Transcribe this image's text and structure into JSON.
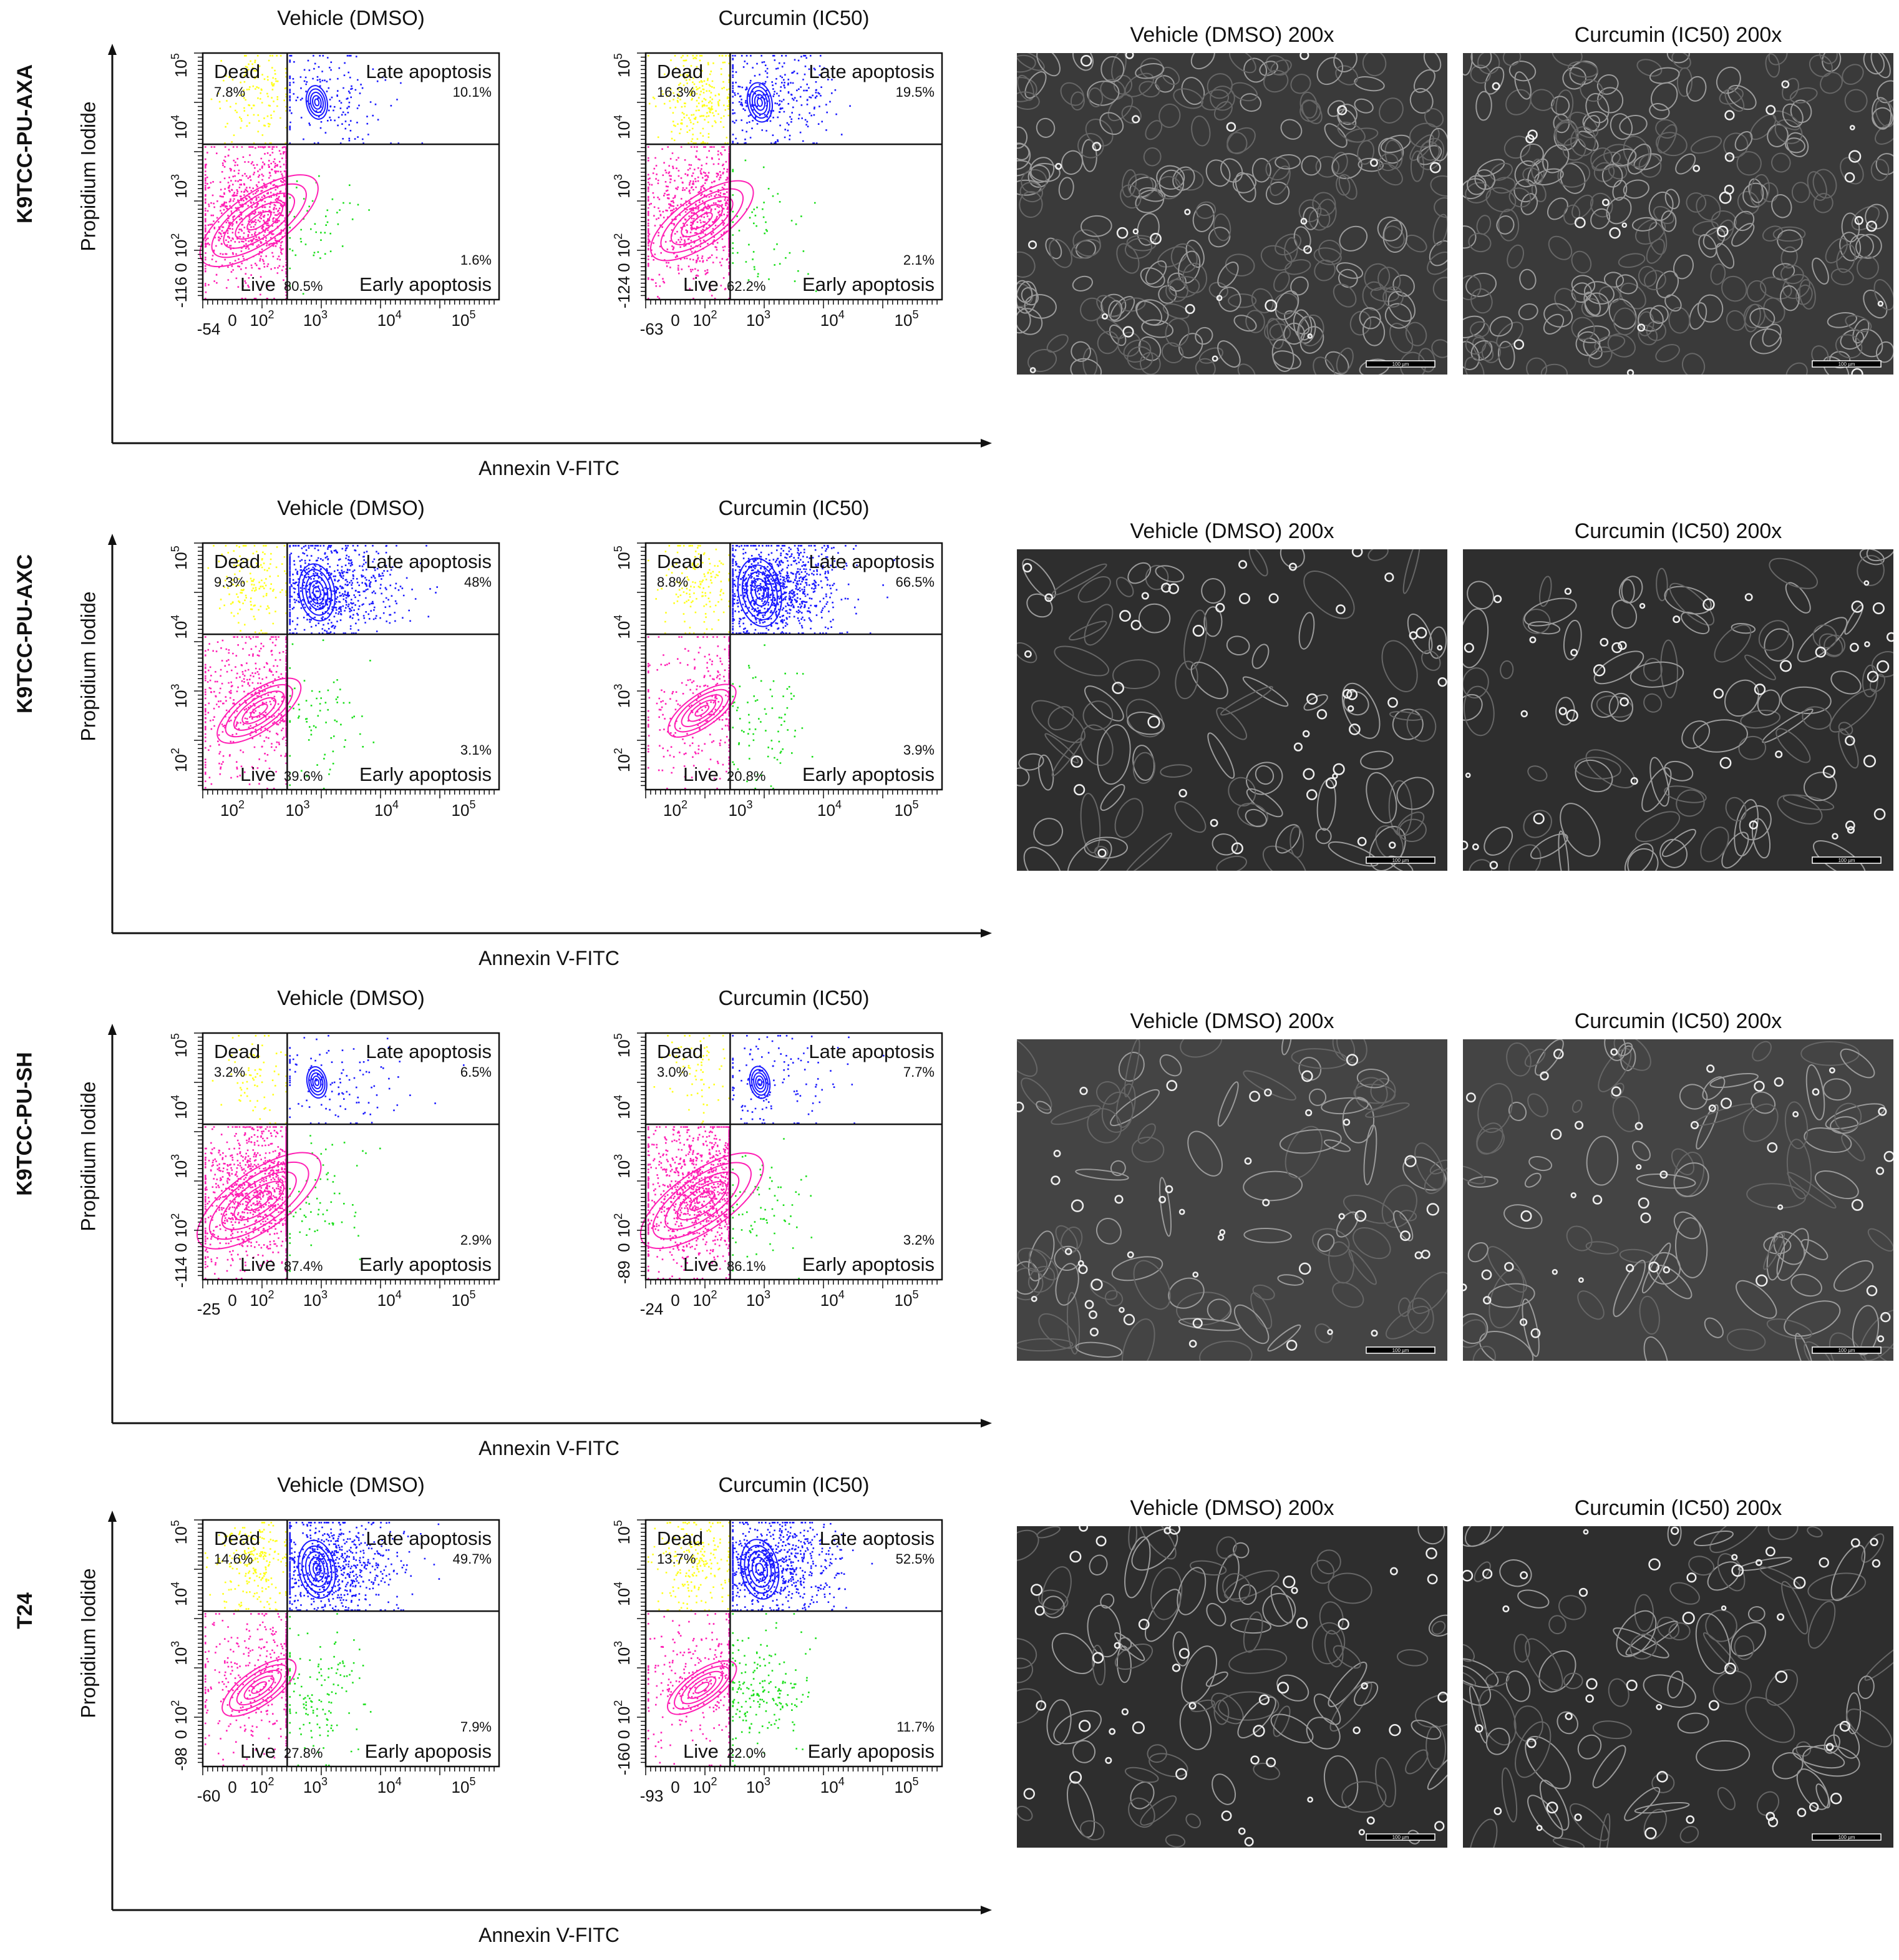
{
  "colors": {
    "live": "#ff1fb4",
    "dead": "#ffff1a",
    "late": "#1a1aff",
    "early": "#1adf1a",
    "axis": "#111111"
  },
  "axis_labels": {
    "x": "Annexin V-FITC",
    "y": "Propidium Iodide"
  },
  "quadrant_names": {
    "dead": "Dead",
    "late": "Late apoptosis",
    "live": "Live",
    "early": "Early apoptosis"
  },
  "micro_titles": {
    "vehicle": "Vehicle (DMSO) 200x",
    "curcumin": "Curcumin (IC50) 200x"
  },
  "scale_bar": "100 µm",
  "rows": [
    {
      "label": "K9TCC-PU-AXA",
      "panels": [
        {
          "title": "Vehicle (DMSO)",
          "dead": "7.8%",
          "late": "10.1%",
          "live": "80.5%",
          "early": "1.6%",
          "late_label": "Late apoptosis",
          "early_label": "Early apoptosis",
          "y_ticks": [
            "10^5",
            "10^4",
            "10^3",
            "10^2",
            "0",
            "-116"
          ],
          "x_ticks": [
            "-54",
            "0",
            "10^2",
            "10^3",
            "10^4",
            "10^5"
          ]
        },
        {
          "title": "Curcumin (IC50)",
          "dead": "16.3%",
          "late": "19.5%",
          "live": "62.2%",
          "early": "2.1%",
          "late_label": "Late apoptosis",
          "early_label": "Early apoptosis",
          "y_ticks": [
            "10^5",
            "10^4",
            "10^3",
            "10^2",
            "0",
            "-124"
          ],
          "x_ticks": [
            "-63",
            "0",
            "10^2",
            "10^3",
            "10^4",
            "10^5"
          ]
        }
      ]
    },
    {
      "label": "K9TCC-PU-AXC",
      "panels": [
        {
          "title": "Vehicle (DMSO)",
          "dead": "9.3%",
          "late": "48%",
          "live": "39.6%",
          "early": "3.1%",
          "late_label": "Late apoptosis",
          "early_label": "Early apoptosis",
          "y_ticks": [
            "10^5",
            "10^4",
            "10^3",
            "10^2"
          ],
          "x_ticks": [
            "10^2",
            "10^3",
            "10^4",
            "10^5"
          ]
        },
        {
          "title": "Curcumin (IC50)",
          "dead": "8.8%",
          "late": "66.5%",
          "live": "20.8%",
          "early": "3.9%",
          "late_label": "Late apoptosis",
          "early_label": "Early apoptosis",
          "y_ticks": [
            "10^5",
            "10^4",
            "10^3",
            "10^2"
          ],
          "x_ticks": [
            "10^2",
            "10^3",
            "10^4",
            "10^5"
          ]
        }
      ]
    },
    {
      "label": "K9TCC-PU-SH",
      "panels": [
        {
          "title": "Vehicle (DMSO)",
          "dead": "3.2%",
          "late": "6.5%",
          "live": "87.4%",
          "early": "2.9%",
          "late_label": "Late apoptosis",
          "early_label": "Early apoptosis",
          "y_ticks": [
            "10^5",
            "10^4",
            "10^3",
            "10^2",
            "0",
            "-114"
          ],
          "x_ticks": [
            "-25",
            "0",
            "10^2",
            "10^3",
            "10^4",
            "10^5"
          ]
        },
        {
          "title": "Curcumin (IC50)",
          "dead": "3.0%",
          "late": "7.7%",
          "live": "86.1%",
          "early": "3.2%",
          "late_label": "Late apoptosis",
          "early_label": "Early apoptosis",
          "y_ticks": [
            "10^5",
            "10^4",
            "10^3",
            "10^2",
            "0",
            "-89"
          ],
          "x_ticks": [
            "-24",
            "0",
            "10^2",
            "10^3",
            "10^4",
            "10^5"
          ]
        }
      ]
    },
    {
      "label": "T24",
      "panels": [
        {
          "title": "Vehicle (DMSO)",
          "dead": "14.6%",
          "late": "49.7%",
          "live": "27.8%",
          "early": "7.9%",
          "late_label": "Late apoptosis",
          "early_label": "Early apoposis",
          "y_ticks": [
            "10^5",
            "10^4",
            "10^3",
            "10^2",
            "0",
            "-98"
          ],
          "x_ticks": [
            "-60",
            "0",
            "10^2",
            "10^3",
            "10^4",
            "10^5"
          ]
        },
        {
          "title": "Curcumin (IC50)",
          "dead": "13.7%",
          "late": "52.5%",
          "live": "22.0%",
          "early": "11.7%",
          "late_label": "Late aoptosis",
          "early_label": "Early apoposis",
          "y_ticks": [
            "10^5",
            "10^4",
            "10^3",
            "10^2",
            "0",
            "-160"
          ],
          "x_ticks": [
            "-93",
            "0",
            "10^2",
            "10^3",
            "10^4",
            "10^5"
          ]
        }
      ]
    }
  ],
  "chart_data": [
    {
      "type": "scatter",
      "cell_line": "K9TCC-PU-AXA",
      "title": "Vehicle (DMSO)",
      "xlabel": "Annexin V-FITC",
      "ylabel": "Propidium Iodide",
      "x_scale": "biexponential",
      "y_scale": "biexponential",
      "xlim": [
        -54,
        100000
      ],
      "ylim": [
        -116,
        100000
      ],
      "legend": "none",
      "quadrants": [
        {
          "name": "Dead",
          "percent": 7.8
        },
        {
          "name": "Late apoptosis",
          "percent": 10.1
        },
        {
          "name": "Live",
          "percent": 80.5
        },
        {
          "name": "Early apoptosis",
          "percent": 1.6
        }
      ]
    },
    {
      "type": "scatter",
      "cell_line": "K9TCC-PU-AXA",
      "title": "Curcumin (IC50)",
      "xlabel": "Annexin V-FITC",
      "ylabel": "Propidium Iodide",
      "x_scale": "biexponential",
      "y_scale": "biexponential",
      "xlim": [
        -63,
        100000
      ],
      "ylim": [
        -124,
        100000
      ],
      "legend": "none",
      "quadrants": [
        {
          "name": "Dead",
          "percent": 16.3
        },
        {
          "name": "Late apoptosis",
          "percent": 19.5
        },
        {
          "name": "Live",
          "percent": 62.2
        },
        {
          "name": "Early apoptosis",
          "percent": 2.1
        }
      ]
    },
    {
      "type": "scatter",
      "cell_line": "K9TCC-PU-AXC",
      "title": "Vehicle (DMSO)",
      "xlabel": "Annexin V-FITC",
      "ylabel": "Propidium Iodide",
      "x_scale": "log",
      "y_scale": "log",
      "legend": "none",
      "quadrants": [
        {
          "name": "Dead",
          "percent": 9.3
        },
        {
          "name": "Late apoptosis",
          "percent": 48
        },
        {
          "name": "Live",
          "percent": 39.6
        },
        {
          "name": "Early apoptosis",
          "percent": 3.1
        }
      ]
    },
    {
      "type": "scatter",
      "cell_line": "K9TCC-PU-AXC",
      "title": "Curcumin (IC50)",
      "xlabel": "Annexin V-FITC",
      "ylabel": "Propidium Iodide",
      "x_scale": "log",
      "y_scale": "log",
      "legend": "none",
      "quadrants": [
        {
          "name": "Dead",
          "percent": 8.8
        },
        {
          "name": "Late apoptosis",
          "percent": 66.5
        },
        {
          "name": "Live",
          "percent": 20.8
        },
        {
          "name": "Early apoptosis",
          "percent": 3.9
        }
      ]
    },
    {
      "type": "scatter",
      "cell_line": "K9TCC-PU-SH",
      "title": "Vehicle (DMSO)",
      "xlabel": "Annexin V-FITC",
      "ylabel": "Propidium Iodide",
      "x_scale": "biexponential",
      "y_scale": "biexponential",
      "xlim": [
        -25,
        100000
      ],
      "ylim": [
        -114,
        100000
      ],
      "legend": "none",
      "quadrants": [
        {
          "name": "Dead",
          "percent": 3.2
        },
        {
          "name": "Late apoptosis",
          "percent": 6.5
        },
        {
          "name": "Live",
          "percent": 87.4
        },
        {
          "name": "Early apoptosis",
          "percent": 2.9
        }
      ]
    },
    {
      "type": "scatter",
      "cell_line": "K9TCC-PU-SH",
      "title": "Curcumin (IC50)",
      "xlabel": "Annexin V-FITC",
      "ylabel": "Propidium Iodide",
      "x_scale": "biexponential",
      "y_scale": "biexponential",
      "xlim": [
        -24,
        100000
      ],
      "ylim": [
        -89,
        100000
      ],
      "legend": "none",
      "quadrants": [
        {
          "name": "Dead",
          "percent": 3.0
        },
        {
          "name": "Late apoptosis",
          "percent": 7.7
        },
        {
          "name": "Live",
          "percent": 86.1
        },
        {
          "name": "Early apoptosis",
          "percent": 3.2
        }
      ]
    },
    {
      "type": "scatter",
      "cell_line": "T24",
      "title": "Vehicle (DMSO)",
      "xlabel": "Annexin V-FITC",
      "ylabel": "Propidium Iodide",
      "x_scale": "biexponential",
      "y_scale": "biexponential",
      "xlim": [
        -60,
        100000
      ],
      "ylim": [
        -98,
        100000
      ],
      "legend": "none",
      "quadrants": [
        {
          "name": "Dead",
          "percent": 14.6
        },
        {
          "name": "Late apoptosis",
          "percent": 49.7
        },
        {
          "name": "Live",
          "percent": 27.8
        },
        {
          "name": "Early apoposis",
          "percent": 7.9
        }
      ]
    },
    {
      "type": "scatter",
      "cell_line": "T24",
      "title": "Curcumin (IC50)",
      "xlabel": "Annexin V-FITC",
      "ylabel": "Propidium Iodide",
      "x_scale": "biexponential",
      "y_scale": "biexponential",
      "xlim": [
        -93,
        100000
      ],
      "ylim": [
        -160,
        100000
      ],
      "legend": "none",
      "quadrants": [
        {
          "name": "Dead",
          "percent": 13.7
        },
        {
          "name": "Late aoptosis",
          "percent": 52.5
        },
        {
          "name": "Live",
          "percent": 22.0
        },
        {
          "name": "Early apoposis",
          "percent": 11.7
        }
      ]
    }
  ]
}
